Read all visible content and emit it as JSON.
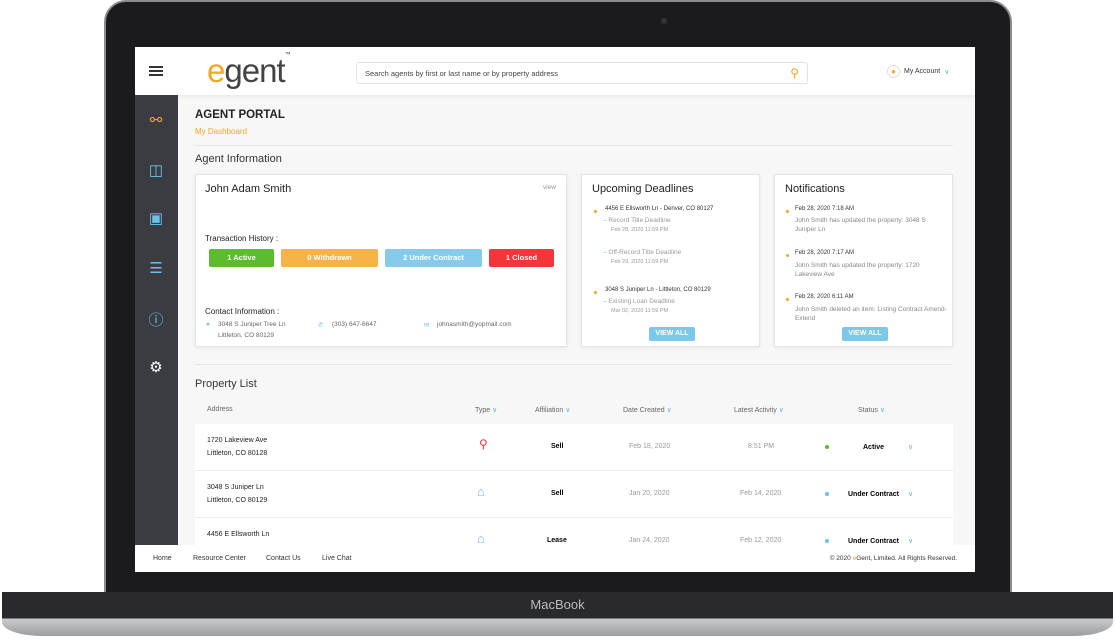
{
  "device": {
    "brand": "MacBook"
  },
  "header": {
    "logo": "eGent",
    "logo_tm": "™",
    "search_placeholder": "Search agents by first or last name or by property address",
    "account_label": "My Account"
  },
  "sidebar": {
    "items": [
      {
        "icon": "agents-icon",
        "active": true
      },
      {
        "icon": "chat-icon"
      },
      {
        "icon": "calendar-icon"
      },
      {
        "icon": "list-icon"
      },
      {
        "icon": "help-icon"
      },
      {
        "icon": "gear-icon"
      }
    ]
  },
  "page": {
    "title": "AGENT PORTAL",
    "breadcrumb": "My Dashboard",
    "agent_section": "Agent Information",
    "property_section": "Property List"
  },
  "agent": {
    "name": "John Adam Smith",
    "view_link": "view",
    "history_label": "Transaction History :",
    "badges": [
      {
        "label": "1 Active",
        "color": "#5dbb2e"
      },
      {
        "label": "0 Withdrawn",
        "color": "#f7b24a"
      },
      {
        "label": "2 Under Contract",
        "color": "#86cbe9"
      },
      {
        "label": "1 Closed",
        "color": "#f2363a"
      }
    ],
    "contact_label": "Contact Information :",
    "address_line1": "3048 S Juniper Tree Ln",
    "address_line2": "Littleton, CO 80129",
    "phone": "(303) 647-6647",
    "email": "johnasmith@yopmail.com"
  },
  "deadlines": {
    "title": "Upcoming Deadlines",
    "view_all": "VIEW ALL",
    "groups": [
      {
        "property": "4456 E Ellsworth Ln - Denver, CO 80127",
        "items": [
          {
            "name": "Record Title Deadline",
            "date": "Feb 28, 2020 11:59 PM"
          },
          {
            "name": "Off-Record Title Deadline",
            "date": "Feb 29, 2020 11:59 PM"
          }
        ]
      },
      {
        "property": "3048 S Juniper Ln - Littleton, CO 80129",
        "items": [
          {
            "name": "Existing Loan Deadline",
            "date": "Mar 02, 2020 11:59 PM"
          }
        ]
      }
    ]
  },
  "notifications": {
    "title": "Notifications",
    "view_all": "VIEW ALL",
    "items": [
      {
        "time": "Feb 28, 2020  7:18 AM",
        "text": "John Smith has updated the property: 3048 S Juniper Ln"
      },
      {
        "time": "Feb 28, 2020  7:17 AM",
        "text": "John Smith has updated the property: 1720 Lakeview Ave"
      },
      {
        "time": "Feb 28, 2020  6:11 AM",
        "text": "John Smith deleted an item: Listing Contract Amend-Extend"
      }
    ]
  },
  "property_list": {
    "columns": [
      "Address",
      "Type",
      "Affiliation",
      "Date Created",
      "Latest Activity",
      "Status"
    ],
    "rows": [
      {
        "line1": "1720 Lakeview Ave",
        "line2": "Littleton, CO 80128",
        "type": "pin-icon",
        "affiliation": "Sell",
        "created": "Feb 18, 2020",
        "activity": "8:51 PM",
        "status": "Active",
        "status_color": "#5dbb2e"
      },
      {
        "line1": "3048 S Juniper Ln",
        "line2": "Littleton, CO 80129",
        "type": "house-icon",
        "affiliation": "Sell",
        "created": "Jan 20, 2020",
        "activity": "Feb 14, 2020",
        "status": "Under Contract",
        "status_color": "#6ac4ea"
      },
      {
        "line1": "4456 E Ellsworth Ln",
        "line2": "",
        "type": "house-icon",
        "affiliation": "Lease",
        "created": "Jan 24, 2020",
        "activity": "Feb 12, 2020",
        "status": "Under Contract",
        "status_color": "#6ac4ea"
      }
    ]
  },
  "footer": {
    "links": [
      "Home",
      "Resource Center",
      "Contact Us",
      "Live Chat"
    ],
    "copyright_pre": "© 2020 ",
    "copyright_brand": "e",
    "copyright_post": "Gent, Limited.  All Rights Reserved."
  },
  "colors": {
    "accent": "#f5a623",
    "blue": "#6ac4ea",
    "sidebar": "#3a3c41"
  }
}
